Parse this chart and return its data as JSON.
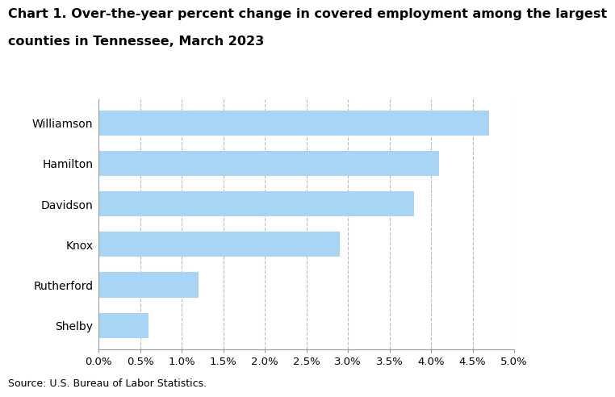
{
  "title_line1": "Chart 1. Over-the-year percent change in covered employment among the largest",
  "title_line2": "counties in Tennessee, March 2023",
  "categories": [
    "Shelby",
    "Rutherford",
    "Knox",
    "Davidson",
    "Hamilton",
    "Williamson"
  ],
  "values": [
    0.006,
    0.012,
    0.029,
    0.038,
    0.041,
    0.047
  ],
  "bar_color": "#a8d4f5",
  "xlim": [
    0,
    0.05
  ],
  "xticks": [
    0.0,
    0.005,
    0.01,
    0.015,
    0.02,
    0.025,
    0.03,
    0.035,
    0.04,
    0.045,
    0.05
  ],
  "xtick_labels": [
    "0.0%",
    "0.5%",
    "1.0%",
    "1.5%",
    "2.0%",
    "2.5%",
    "3.0%",
    "3.5%",
    "4.0%",
    "4.5%",
    "5.0%"
  ],
  "source": "Source: U.S. Bureau of Labor Statistics.",
  "title_fontsize": 11.5,
  "label_fontsize": 10,
  "tick_fontsize": 9.5,
  "source_fontsize": 9,
  "bar_height": 0.62,
  "grid_color": "#bbbbbb",
  "background_color": "#ffffff",
  "spine_color": "#999999"
}
